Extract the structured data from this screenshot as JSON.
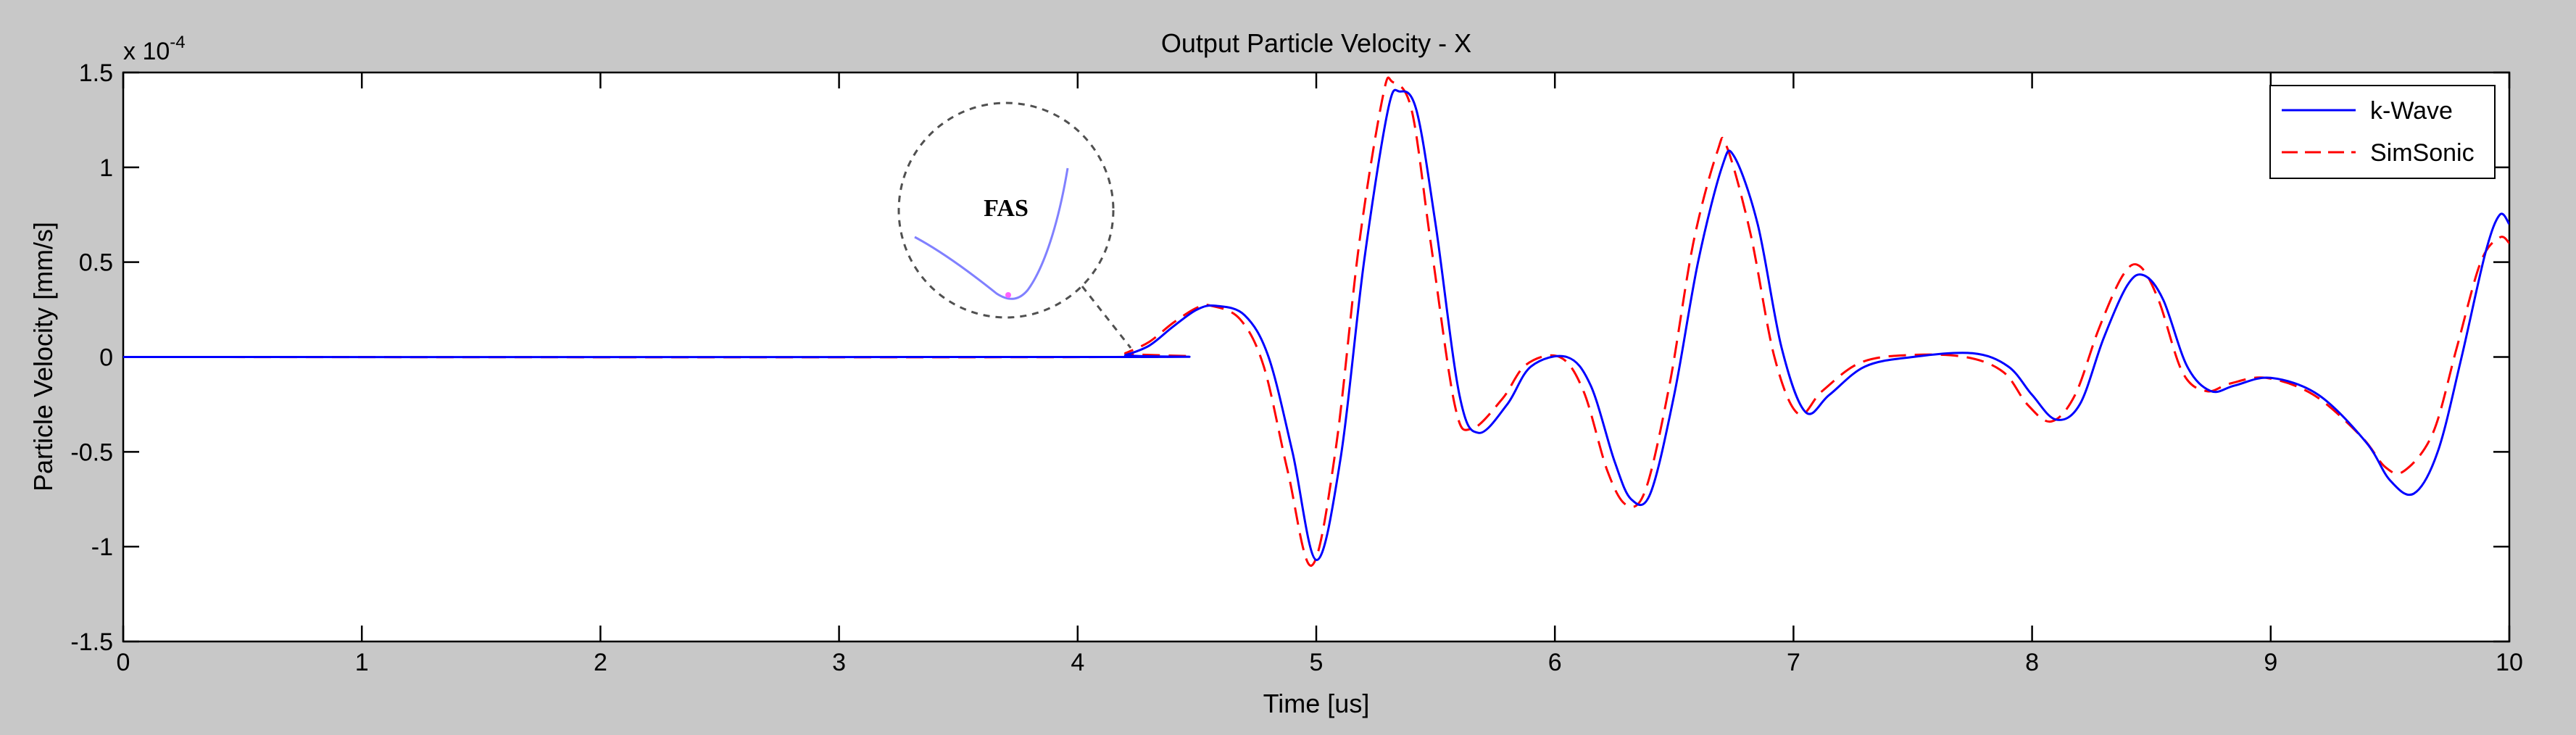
{
  "chart_data": {
    "type": "line",
    "title": "Output Particle Velocity - X",
    "xlabel": "Time [us]",
    "ylabel": "Particle Velocity [mm/s]",
    "y_exponent_label": "x 10",
    "y_exponent_power": "-4",
    "xlim": [
      0,
      10
    ],
    "ylim": [
      -1.5,
      1.5
    ],
    "x_ticks": [
      0,
      1,
      2,
      3,
      4,
      5,
      6,
      7,
      8,
      9,
      10
    ],
    "x_tick_labels": [
      "0",
      "1",
      "2",
      "3",
      "4",
      "5",
      "6",
      "7",
      "8",
      "9",
      "10"
    ],
    "y_ticks": [
      -1.5,
      -1,
      -0.5,
      0,
      0.5,
      1,
      1.5
    ],
    "y_tick_labels": [
      "-1.5",
      "-1",
      "-0.5",
      "0",
      "0.5",
      "1",
      "1.5"
    ],
    "grid": false,
    "legend_position": "top-right",
    "series": [
      {
        "name": "k-Wave",
        "color": "#0000ff",
        "style": "solid",
        "x": [
          0,
          4.15,
          4.2,
          4.3,
          4.4,
          4.5,
          4.58,
          4.7,
          4.8,
          4.9,
          5.0,
          5.1,
          5.2,
          5.3,
          5.35,
          5.42,
          5.5,
          5.6,
          5.68,
          5.8,
          5.9,
          6.05,
          6.15,
          6.25,
          6.32,
          6.4,
          6.5,
          6.6,
          6.7,
          6.75,
          6.85,
          6.95,
          7.05,
          7.15,
          7.3,
          7.5,
          7.75,
          7.9,
          8.0,
          8.1,
          8.2,
          8.3,
          8.4,
          8.47,
          8.55,
          8.65,
          8.75,
          8.85,
          9.0,
          9.2,
          9.4,
          9.5,
          9.6,
          9.7,
          9.8,
          9.9,
          9.96,
          10.0
        ],
        "y": [
          0.0,
          0.0,
          0.01,
          0.06,
          0.16,
          0.25,
          0.27,
          0.22,
          0.0,
          -0.5,
          -1.07,
          -0.55,
          0.5,
          1.3,
          1.4,
          1.3,
          0.7,
          -0.2,
          -0.4,
          -0.25,
          -0.05,
          0.0,
          -0.15,
          -0.55,
          -0.75,
          -0.72,
          -0.2,
          0.5,
          1.0,
          1.06,
          0.7,
          0.05,
          -0.29,
          -0.2,
          -0.05,
          0.0,
          0.02,
          -0.05,
          -0.2,
          -0.33,
          -0.25,
          0.1,
          0.38,
          0.43,
          0.3,
          -0.05,
          -0.18,
          -0.15,
          -0.11,
          -0.2,
          -0.45,
          -0.65,
          -0.72,
          -0.5,
          0.0,
          0.55,
          0.75,
          0.7
        ]
      },
      {
        "name": "SimSonic",
        "color": "#ff0000",
        "style": "dashed",
        "x": [
          0,
          4.15,
          4.2,
          4.3,
          4.4,
          4.5,
          4.56,
          4.68,
          4.78,
          4.88,
          4.98,
          5.08,
          5.18,
          5.28,
          5.32,
          5.4,
          5.48,
          5.58,
          5.65,
          5.78,
          5.88,
          6.02,
          6.12,
          6.22,
          6.3,
          6.38,
          6.48,
          6.58,
          6.68,
          6.72,
          6.82,
          6.92,
          7.02,
          7.12,
          7.28,
          7.48,
          7.72,
          7.88,
          7.98,
          8.08,
          8.18,
          8.28,
          8.38,
          8.45,
          8.53,
          8.63,
          8.73,
          8.83,
          8.98,
          9.18,
          9.38,
          9.48,
          9.56,
          9.68,
          9.78,
          9.88,
          9.96,
          10.0
        ],
        "y": [
          0.0,
          0.0,
          0.02,
          0.08,
          0.18,
          0.26,
          0.27,
          0.2,
          -0.05,
          -0.6,
          -1.1,
          -0.5,
          0.6,
          1.38,
          1.45,
          1.3,
          0.6,
          -0.25,
          -0.38,
          -0.22,
          -0.04,
          0.0,
          -0.18,
          -0.6,
          -0.78,
          -0.7,
          -0.15,
          0.6,
          1.08,
          1.11,
          0.65,
          0.0,
          -0.3,
          -0.18,
          -0.03,
          0.01,
          0.0,
          -0.08,
          -0.25,
          -0.34,
          -0.2,
          0.15,
          0.43,
          0.48,
          0.3,
          -0.08,
          -0.18,
          -0.14,
          -0.11,
          -0.2,
          -0.42,
          -0.58,
          -0.6,
          -0.4,
          0.05,
          0.5,
          0.63,
          0.6
        ]
      }
    ],
    "annotations": [
      {
        "text": "FAS",
        "x": 4.2,
        "y": 0.0
      }
    ]
  }
}
